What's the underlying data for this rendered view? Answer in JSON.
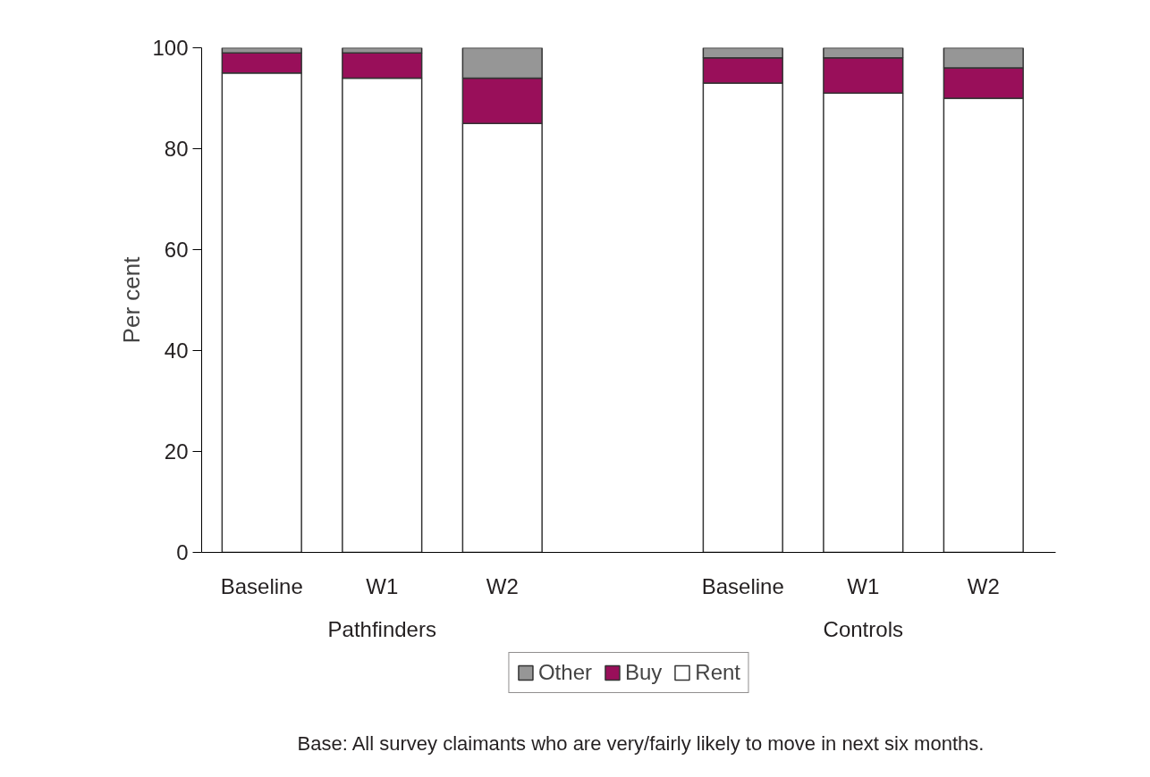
{
  "chart_data": {
    "type": "bar",
    "stacked": true,
    "ylabel": "Per cent",
    "categories": [
      "Baseline",
      "W1",
      "W2",
      null,
      "Baseline",
      "W1",
      "W2"
    ],
    "series": [
      {
        "name": "Rent",
        "color": "#ffffff",
        "values": [
          95,
          94,
          85,
          null,
          93,
          91,
          90
        ]
      },
      {
        "name": "Buy",
        "color": "#990f5a",
        "values": [
          4,
          5,
          9,
          null,
          5,
          7,
          6
        ]
      },
      {
        "name": "Other",
        "color": "#969696",
        "values": [
          1,
          1,
          6,
          null,
          2,
          2,
          4
        ]
      }
    ],
    "ylim": [
      0,
      100
    ],
    "yticks": [
      0,
      20,
      40,
      60,
      80,
      100
    ],
    "grid": false,
    "legend": "bottom",
    "annotations": [
      "Pathfinders",
      "Controls",
      "Base: All survey claimants who are very/fairly likely to move in next six months."
    ]
  }
}
